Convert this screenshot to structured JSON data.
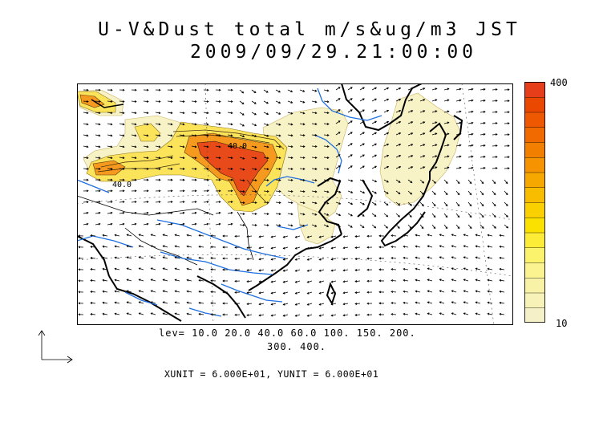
{
  "title": {
    "line1": "U-V&Dust total m/s&ug/m3 JST",
    "line2": "2009/09/29.21:00:00"
  },
  "colorbar": {
    "max_label": "400",
    "min_label": "10",
    "colors": [
      "#f5f0c8",
      "#f7f2b8",
      "#f8f2a6",
      "#faf38f",
      "#fbf36b",
      "#fcec38",
      "#fbe100",
      "#fad000",
      "#f9bd00",
      "#f7a800",
      "#f59400",
      "#f37f00",
      "#f06a00",
      "#ee5800",
      "#ea4800",
      "#e63d1a"
    ]
  },
  "contour_levels": {
    "line1": "lev= 10.0 20.0 40.0 60.0 100. 150. 200.",
    "line2": "300. 400."
  },
  "contour_labels": [
    "40.0",
    "40.0"
  ],
  "units_text": "XUNIT = 6.000E+01, YUNIT = 6.000E+01",
  "colors": {
    "land_outline": "#000000",
    "rivers": "#1e6fe0",
    "dust_low": "#f8f3bd",
    "dust_mid": "#fbe14a",
    "dust_high": "#f06a00",
    "dust_peak": "#e84a1a"
  }
}
